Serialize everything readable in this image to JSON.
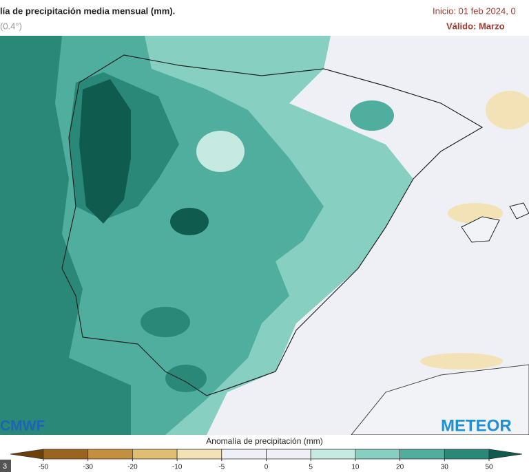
{
  "header": {
    "title": "lía de precipitación media mensual (mm).",
    "subtitle": "(0.4°)",
    "start": "Inicio: 01 feb 2024, 0",
    "valid": "Válido: Marzo"
  },
  "logos": {
    "left": "CMWF",
    "right": "METEOR"
  },
  "corner_label": "3",
  "legend": {
    "title": "Anomalía de precipitación (mm)",
    "ticks": [
      -50,
      -30,
      -20,
      -10,
      -5,
      0,
      5,
      10,
      20,
      30,
      50
    ],
    "colors": [
      "#6e3f08",
      "#9a6420",
      "#c48f3e",
      "#e0bd73",
      "#f3e2b6",
      "#eef0f5",
      "#eef0f5",
      "#c6e9e1",
      "#86cfc1",
      "#4fae9d",
      "#2a8878",
      "#0f5c4f"
    ]
  }
}
